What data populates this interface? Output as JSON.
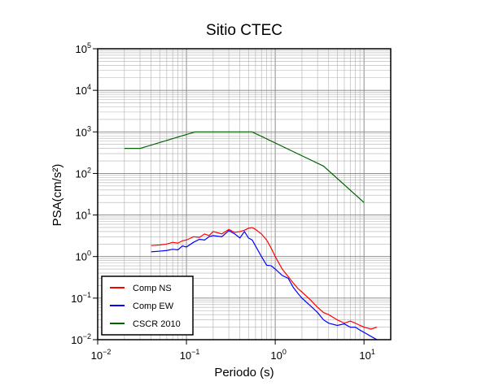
{
  "chart_data": {
    "type": "line",
    "title": "Sitio CTEC",
    "x_label": "Periodo (s)",
    "y_label": "PSA(cm/s²)",
    "xscale": "log",
    "yscale": "log",
    "grid": true,
    "legend": "lower left",
    "xlim": [
      0.01,
      20
    ],
    "ylim": [
      0.01,
      100000
    ],
    "xticks": [
      {
        "value": 0.01,
        "label": "10",
        "exponent": "−2"
      },
      {
        "value": 0.1,
        "label": "10",
        "exponent": "−1"
      },
      {
        "value": 1,
        "label": "10",
        "exponent": "0"
      },
      {
        "value": 10,
        "label": "10",
        "exponent": "1"
      }
    ],
    "yticks": [
      {
        "value": 0.01,
        "label": "10",
        "exponent": "−2"
      },
      {
        "value": 0.1,
        "label": "10",
        "exponent": "−1"
      },
      {
        "value": 1,
        "label": "10",
        "exponent": "0"
      },
      {
        "value": 10,
        "label": "10",
        "exponent": "1"
      },
      {
        "value": 100,
        "label": "10",
        "exponent": "2"
      },
      {
        "value": 1000,
        "label": "10",
        "exponent": "3"
      },
      {
        "value": 10000,
        "label": "10",
        "exponent": "4"
      },
      {
        "value": 100000,
        "label": "10",
        "exponent": "5"
      }
    ],
    "series": [
      {
        "name": "Comp NS",
        "color": "#ff0000",
        "x": [
          0.04,
          0.05,
          0.06,
          0.07,
          0.08,
          0.09,
          0.1,
          0.12,
          0.14,
          0.16,
          0.18,
          0.2,
          0.25,
          0.3,
          0.35,
          0.4,
          0.45,
          0.5,
          0.55,
          0.6,
          0.7,
          0.8,
          0.9,
          1,
          1.2,
          1.4,
          1.6,
          1.8,
          2,
          2.5,
          3,
          3.5,
          4,
          5,
          6,
          7,
          8,
          9,
          10,
          12,
          14
        ],
        "values": [
          1.84,
          1.9,
          2.0,
          2.2,
          2.1,
          2.4,
          2.5,
          3.0,
          2.9,
          3.5,
          3.2,
          4.0,
          3.5,
          4.5,
          3.8,
          4.0,
          4.3,
          4.8,
          5.0,
          4.5,
          3.5,
          2.5,
          1.6,
          1.0,
          0.5,
          0.33,
          0.23,
          0.17,
          0.14,
          0.09,
          0.06,
          0.045,
          0.04,
          0.03,
          0.025,
          0.028,
          0.025,
          0.022,
          0.02,
          0.018,
          0.02
        ]
      },
      {
        "name": "Comp EW",
        "color": "#0000ff",
        "x": [
          0.04,
          0.05,
          0.06,
          0.07,
          0.08,
          0.09,
          0.1,
          0.12,
          0.14,
          0.16,
          0.18,
          0.2,
          0.25,
          0.3,
          0.35,
          0.4,
          0.45,
          0.5,
          0.55,
          0.6,
          0.7,
          0.8,
          0.9,
          1,
          1.2,
          1.4,
          1.6,
          1.8,
          2,
          2.5,
          3,
          3.5,
          4,
          5,
          6,
          7,
          8,
          9,
          10,
          12,
          14
        ],
        "values": [
          1.3,
          1.35,
          1.4,
          1.5,
          1.45,
          1.8,
          1.7,
          2.2,
          2.6,
          2.5,
          3.0,
          3.2,
          3.0,
          4.2,
          3.5,
          2.8,
          4.0,
          2.8,
          2.5,
          1.8,
          1.0,
          0.62,
          0.6,
          0.5,
          0.35,
          0.3,
          0.18,
          0.13,
          0.1,
          0.065,
          0.045,
          0.03,
          0.025,
          0.022,
          0.024,
          0.02,
          0.02,
          0.017,
          0.015,
          0.012,
          0.01
        ]
      },
      {
        "name": "CSCR 2010",
        "color": "#006400",
        "x": [
          0.02,
          0.03,
          0.125,
          0.55,
          3.5,
          10
        ],
        "values": [
          400,
          400,
          1000,
          1000,
          150,
          20
        ]
      }
    ]
  }
}
